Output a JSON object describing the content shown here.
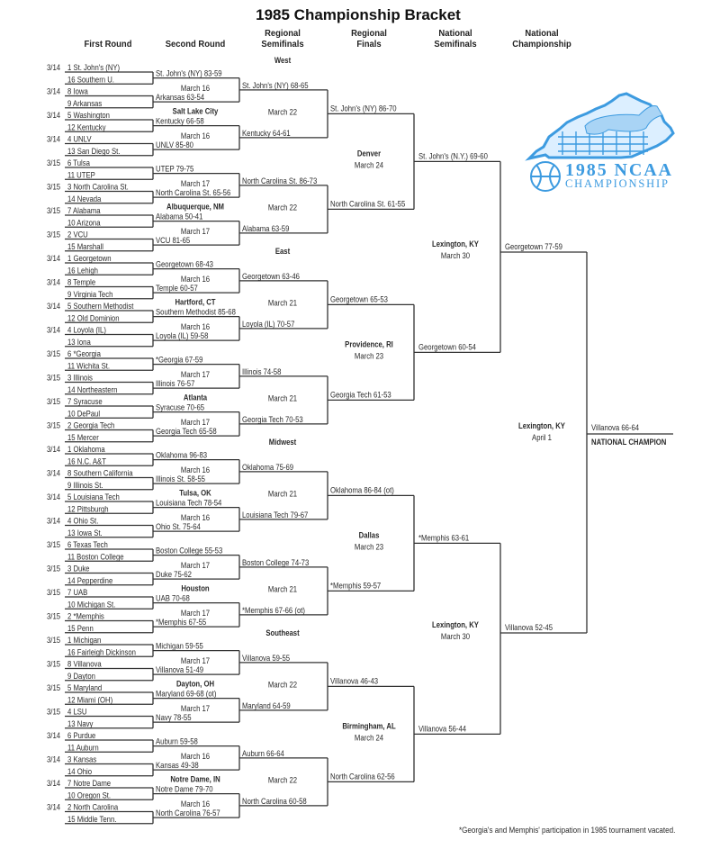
{
  "title": "1985 Championship Bracket",
  "headers": [
    [
      "First Round"
    ],
    [
      "Second  Round"
    ],
    [
      "Regional",
      "Semifinals"
    ],
    [
      "Regional",
      "Finals"
    ],
    [
      "National",
      "Semifinals"
    ],
    [
      "National",
      "Championship"
    ]
  ],
  "regions": [
    {
      "name": "West",
      "first_round_dates": [
        "3/14",
        "3/14",
        "3/14",
        "3/14",
        "3/15",
        "3/15",
        "3/15",
        "3/15"
      ],
      "teams": [
        "1 St. John's (NY)",
        "16 Southern U.",
        "8 Iowa",
        "9 Arkansas",
        "5 Washington",
        "12 Kentucky",
        "4 UNLV",
        "13 San Diego St.",
        "6 Tulsa",
        "11 UTEP",
        "3 North Carolina St.",
        "14 Nevada",
        "7 Alabama",
        "10 Arizona",
        "2 VCU",
        "15 Marshall"
      ],
      "second_round": [
        "St. John's (NY) 83-59",
        "Arkansas 63-54",
        "Kentucky 66-58",
        "UNLV 85-80",
        "UTEP 79-75",
        "North Carolina St. 65-56",
        "Alabama 50-41",
        "VCU 81-65"
      ],
      "second_round_dates": [
        "March 16",
        "March 16",
        "March 17",
        "March 17"
      ],
      "second_round_sites": [
        "Salt Lake City",
        "Albuquerque, NM"
      ],
      "regional_semifinals": [
        "St. John's (NY) 68-65",
        "Kentucky 64-61",
        "North Carolina St. 86-73",
        "Alabama 63-59"
      ],
      "regional_semifinal_dates": [
        "March 22",
        "March 22"
      ],
      "regional_finals": [
        "St. John's (NY) 86-70",
        "North Carolina St. 61-55"
      ],
      "regional_final_site": "Denver",
      "regional_final_date": "March 24"
    },
    {
      "name": "East",
      "first_round_dates": [
        "3/14",
        "3/14",
        "3/14",
        "3/14",
        "3/15",
        "3/15",
        "3/15",
        "3/15"
      ],
      "teams": [
        "1 Georgetown",
        "16 Lehigh",
        "8 Temple",
        "9 Virginia Tech",
        "5 Southern Methodist",
        "12 Old Dominion",
        "4 Loyola (IL)",
        "13 Iona",
        "6 *Georgia",
        "11 Wichita St.",
        "3 Illinois",
        "14 Northeastern",
        "7 Syracuse",
        "10 DePaul",
        "2 Georgia Tech",
        "15 Mercer"
      ],
      "second_round": [
        "Georgetown 68-43",
        "Temple 60-57",
        "Southern Methodist 85-68",
        "Loyola (IL) 59-58",
        "*Georgia 67-59",
        "Illinois 76-57",
        "Syracuse 70-65",
        "Georgia Tech 65-58"
      ],
      "second_round_dates": [
        "March 16",
        "March 16",
        "March 17",
        "March 17"
      ],
      "second_round_sites": [
        "Hartford, CT",
        "Atlanta"
      ],
      "regional_semifinals": [
        "Georgetown 63-46",
        "Loyola (IL) 70-57",
        "Illinois 74-58",
        "Georgia Tech 70-53"
      ],
      "regional_semifinal_dates": [
        "March 21",
        "March 21"
      ],
      "regional_finals": [
        "Georgetown 65-53",
        "Georgia Tech 61-53"
      ],
      "regional_final_site": "Providence, RI",
      "regional_final_date": "March 23"
    },
    {
      "name": "Midwest",
      "first_round_dates": [
        "3/14",
        "3/14",
        "3/14",
        "3/14",
        "3/15",
        "3/15",
        "3/15",
        "3/15"
      ],
      "teams": [
        "1 Oklahoma",
        "16 N.C. A&T",
        "8 Southern California",
        "9 Illinois St.",
        "5 Louisiana Tech",
        "12 Pittsburgh",
        "4 Ohio St.",
        "13 Iowa St.",
        "6 Texas Tech",
        "11 Boston College",
        "3 Duke",
        "14 Pepperdine",
        "7 UAB",
        "10 Michigan St.",
        "2 *Memphis",
        "15 Penn"
      ],
      "second_round": [
        "Oklahoma 96-83",
        "Illinois St. 58-55",
        "Louisiana Tech 78-54",
        "Ohio St. 75-64",
        "Boston College 55-53",
        "Duke 75-62",
        "UAB 70-68",
        "*Memphis 67-55"
      ],
      "second_round_dates": [
        "March 16",
        "March 16",
        "March 17",
        "March 17"
      ],
      "second_round_sites": [
        "Tulsa, OK",
        "Houston"
      ],
      "regional_semifinals": [
        "Oklahoma 75-69",
        "Louisiana Tech 79-67",
        "Boston College 74-73",
        "*Memphis 67-66 (ot)"
      ],
      "regional_semifinal_dates": [
        "March 21",
        "March 21"
      ],
      "regional_finals": [
        "Oklahoma 86-84 (ot)",
        "*Memphis 59-57"
      ],
      "regional_final_site": "Dallas",
      "regional_final_date": "March 23"
    },
    {
      "name": "Southeast",
      "first_round_dates": [
        "3/15",
        "3/15",
        "3/15",
        "3/15",
        "3/14",
        "3/14",
        "3/14",
        "3/14"
      ],
      "teams": [
        "1 Michigan",
        "16 Fairleigh Dickinson",
        "8 Villanova",
        "9 Dayton",
        "5 Maryland",
        "12 Miami (OH)",
        "4 LSU",
        "13 Navy",
        "6 Purdue",
        "11 Auburn",
        "3 Kansas",
        "14 Ohio",
        "7 Notre Dame",
        "10 Oregon St.",
        "2 North Carolina",
        "15 Middle Tenn."
      ],
      "second_round": [
        "Michigan 59-55",
        "Villanova 51-49",
        "Maryland 69-68 (ot)",
        "Navy 78-55",
        "Auburn 59-58",
        "Kansas 49-38",
        "Notre Dame 79-70",
        "North Carolina 76-57"
      ],
      "second_round_dates": [
        "March 17",
        "March 17",
        "March 16",
        "March 16"
      ],
      "second_round_sites": [
        "Dayton, OH",
        "Notre Dame, IN"
      ],
      "regional_semifinals": [
        "Villanova 59-55",
        "Maryland 64-59",
        "Auburn 66-64",
        "North Carolina 60-58"
      ],
      "regional_semifinal_dates": [
        "March 22",
        "March 22"
      ],
      "regional_finals": [
        "Villanova 46-43",
        "North Carolina 62-56"
      ],
      "regional_final_site": "Birmingham, AL",
      "regional_final_date": "March 24"
    }
  ],
  "national_semifinals": {
    "winners": [
      "St. John's (N.Y.) 69-60",
      "Georgetown 60-54",
      "*Memphis 63-61",
      "Villanova 56-44"
    ],
    "sites": [
      {
        "site": "Lexington, KY",
        "date": "March 30"
      },
      {
        "site": "Lexington, KY",
        "date": "March 30"
      }
    ]
  },
  "national_championship": {
    "finalists": [
      "Georgetown 77-59",
      "Villanova 52-45"
    ],
    "site": "Lexington, KY",
    "date": "April 1",
    "champion": "Villanova 66-64",
    "champion_label": "NATIONAL CHAMPION"
  },
  "logo": {
    "line1": "1985 NCAA",
    "line2": "CHAMPIONSHIP",
    "color": "#3d9be0"
  },
  "footnote": "*Georgia's and Memphis' participation in 1985 tournament vacated."
}
